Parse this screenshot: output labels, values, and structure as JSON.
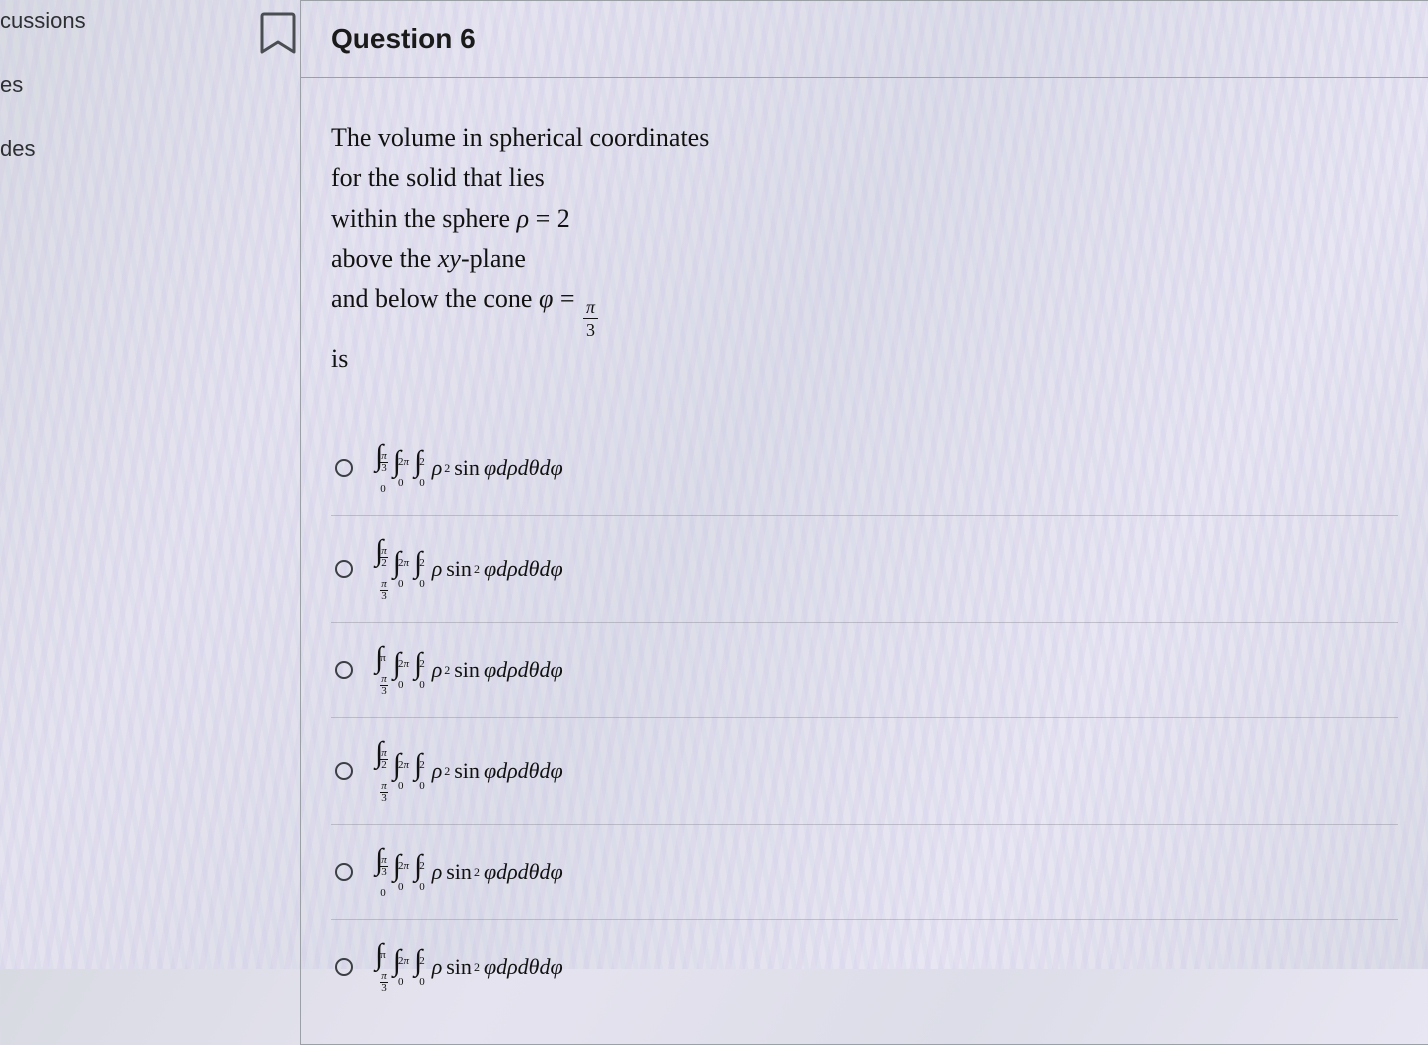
{
  "sidebar": {
    "items": [
      {
        "label": "cussions"
      },
      {
        "label": "es"
      },
      {
        "label": "des"
      }
    ]
  },
  "question": {
    "title": "Question 6",
    "stem_lines": [
      "The volume in spherical coordinates",
      "for the solid that lies",
      "within the sphere ρ = 2",
      "above the xy-plane",
      "and below the cone φ = π/3",
      "is"
    ],
    "options": [
      {
        "id": "a",
        "phi_lower_num": "0",
        "phi_lower_den": "",
        "phi_upper_num": "π",
        "phi_upper_den": "3",
        "theta_upper": "2π",
        "rho_upper": "2",
        "integrand_rho": "ρ",
        "rho_power": "2",
        "trig": "sin",
        "trig_power": "",
        "tail": "φdρdθdφ"
      },
      {
        "id": "b",
        "phi_lower_num": "π",
        "phi_lower_den": "3",
        "phi_upper_num": "π",
        "phi_upper_den": "2",
        "theta_upper": "2π",
        "rho_upper": "2",
        "integrand_rho": "ρ",
        "rho_power": "",
        "trig": "sin",
        "trig_power": "2",
        "tail": "φdρdθdφ"
      },
      {
        "id": "c",
        "phi_lower_num": "π",
        "phi_lower_den": "3",
        "phi_upper_num": "π",
        "phi_upper_den": "",
        "theta_upper": "2π",
        "rho_upper": "2",
        "integrand_rho": "ρ",
        "rho_power": "2",
        "trig": "sin",
        "trig_power": "",
        "tail": "φdρdθdφ"
      },
      {
        "id": "d",
        "phi_lower_num": "π",
        "phi_lower_den": "3",
        "phi_upper_num": "π",
        "phi_upper_den": "2",
        "theta_upper": "2π",
        "rho_upper": "2",
        "integrand_rho": "ρ",
        "rho_power": "2",
        "trig": "sin",
        "trig_power": "",
        "tail": "φdρdθdφ"
      },
      {
        "id": "e",
        "phi_lower_num": "0",
        "phi_lower_den": "",
        "phi_upper_num": "π",
        "phi_upper_den": "3",
        "theta_upper": "2π",
        "rho_upper": "2",
        "integrand_rho": "ρ",
        "rho_power": "",
        "trig": "sin",
        "trig_power": "2",
        "tail": "φdρdθdφ"
      },
      {
        "id": "f",
        "phi_lower_num": "π",
        "phi_lower_den": "3",
        "phi_upper_num": "π",
        "phi_upper_den": "",
        "theta_upper": "2π",
        "rho_upper": "2",
        "integrand_rho": "ρ",
        "rho_power": "",
        "trig": "sin",
        "trig_power": "2",
        "tail": "φdρdθdφ"
      }
    ]
  },
  "colors": {
    "text": "#111111",
    "border": "#9aa0a6",
    "radio_border": "#3b3f44"
  }
}
